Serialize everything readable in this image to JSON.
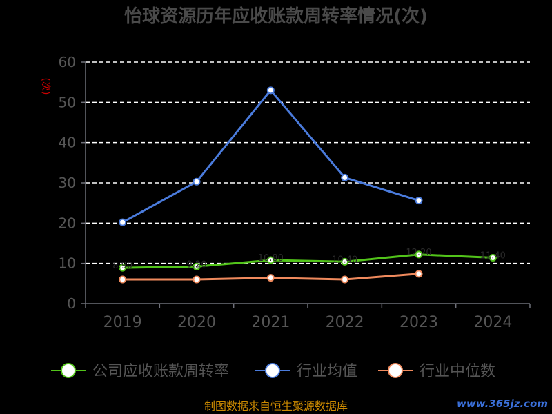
{
  "chart_data": {
    "type": "line",
    "title": "怡球资源历年应收账款周转率情况(次)",
    "ylabel": "(次)",
    "categories": [
      "2019",
      "2020",
      "2021",
      "2022",
      "2023",
      "2024"
    ],
    "ylim": [
      0,
      60
    ],
    "yticks": [
      "0",
      "10",
      "20",
      "30",
      "40",
      "50",
      "60"
    ],
    "grid": true,
    "legend_position": "bottom",
    "series": [
      {
        "name": "公司应收账款周转率",
        "color": "#52c41a",
        "values": [
          8.9,
          9.2,
          10.8,
          10.4,
          12.2,
          11.4
        ]
      },
      {
        "name": "行业均值",
        "color": "#4a7bdc",
        "values": [
          20.2,
          30.3,
          53.0,
          31.3,
          25.6,
          null
        ]
      },
      {
        "name": "行业中位数",
        "color": "#f08a5d",
        "values": [
          6.0,
          6.0,
          6.4,
          6.0,
          7.4,
          null
        ]
      }
    ],
    "source": "制图数据来自恒生聚源数据库",
    "watermark": "www.365jz.com"
  }
}
